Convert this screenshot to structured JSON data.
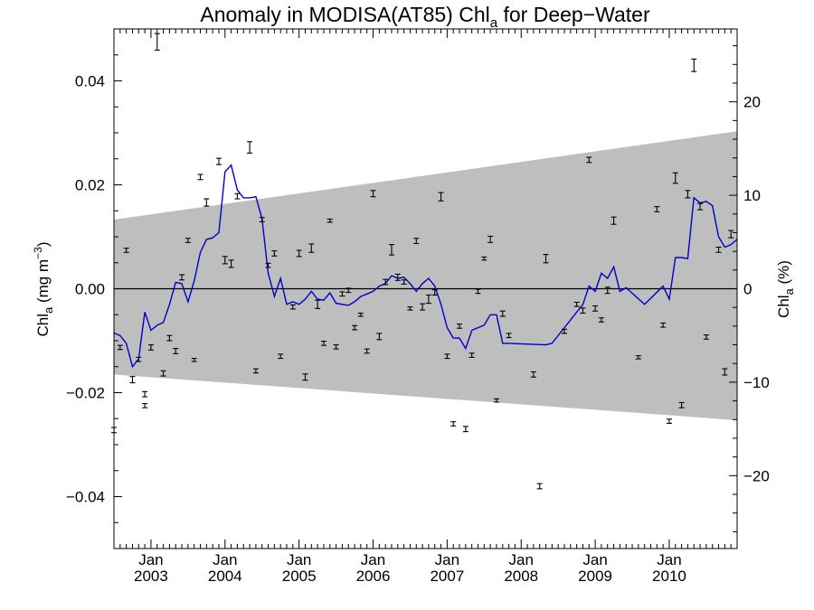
{
  "chart_data": {
    "type": "scatter",
    "title": {
      "main": "Anomaly in MODISA(AT85) Chl",
      "sub": "a",
      "rest": " for Deep−Water"
    },
    "ylabel_left": {
      "main": "Chl",
      "sub": "a",
      "rest": " (mg m",
      "sup": "−3",
      "end": ")"
    },
    "ylabel_right": {
      "main": "Chl",
      "sub": "a",
      "rest": " (%)"
    },
    "x_range": [
      "2002-07",
      "2010-12"
    ],
    "x_ticks": [
      {
        "month": "Jan",
        "year": "2003"
      },
      {
        "month": "Jan",
        "year": "2004"
      },
      {
        "month": "Jan",
        "year": "2005"
      },
      {
        "month": "Jan",
        "year": "2006"
      },
      {
        "month": "Jan",
        "year": "2007"
      },
      {
        "month": "Jan",
        "year": "2008"
      },
      {
        "month": "Jan",
        "year": "2009"
      },
      {
        "month": "Jan",
        "year": "2010"
      }
    ],
    "y_left": {
      "min": -0.05,
      "max": 0.05,
      "ticks": [
        "−0.04",
        "−0.02",
        "0.00",
        "0.02",
        "0.04"
      ],
      "tick_values": [
        -0.04,
        -0.02,
        0,
        0.02,
        0.04
      ]
    },
    "y_right": {
      "min": -27.8,
      "max": 27.8,
      "ticks": [
        "−20",
        "−10",
        "0",
        "10",
        "20"
      ],
      "tick_values": [
        -20,
        -10,
        0,
        10,
        20
      ]
    },
    "zero_line": true,
    "confidence_band": {
      "upper": [
        [
          "2002-07",
          0.0133
        ],
        [
          "2010-12",
          0.0303
        ]
      ],
      "lower": [
        [
          "2002-07",
          -0.0165
        ],
        [
          "2010-12",
          -0.0253
        ]
      ],
      "color": "#bebebe"
    },
    "smoothed_line": {
      "color": "#0000cc",
      "points": [
        [
          "2002-07",
          -0.0085
        ],
        [
          "2002-08",
          -0.009
        ],
        [
          "2002-09",
          -0.0105
        ],
        [
          "2002-10",
          -0.015
        ],
        [
          "2002-11",
          -0.0135
        ],
        [
          "2002-12",
          -0.0045
        ],
        [
          "2003-01",
          -0.008
        ],
        [
          "2003-02",
          -0.007
        ],
        [
          "2003-03",
          -0.0065
        ],
        [
          "2003-04",
          -0.003
        ],
        [
          "2003-05",
          0.0012
        ],
        [
          "2003-06",
          0.001
        ],
        [
          "2003-07",
          -0.0025
        ],
        [
          "2003-08",
          0.0015
        ],
        [
          "2003-09",
          0.007
        ],
        [
          "2003-10",
          0.0095
        ],
        [
          "2003-11",
          0.0098
        ],
        [
          "2003-12",
          0.0108
        ],
        [
          "2004-01",
          0.0225
        ],
        [
          "2004-02",
          0.0238
        ],
        [
          "2004-03",
          0.019
        ],
        [
          "2004-04",
          0.0175
        ],
        [
          "2004-05",
          0.0175
        ],
        [
          "2004-06",
          0.0177
        ],
        [
          "2004-07",
          0.0135
        ],
        [
          "2004-08",
          0.003
        ],
        [
          "2004-09",
          -0.0015
        ],
        [
          "2004-10",
          0.002
        ],
        [
          "2004-11",
          -0.003
        ],
        [
          "2004-12",
          -0.0025
        ],
        [
          "2005-01",
          -0.003
        ],
        [
          "2005-02",
          -0.002
        ],
        [
          "2005-03",
          -0.0005
        ],
        [
          "2005-04",
          -0.002
        ],
        [
          "2005-05",
          -0.0022
        ],
        [
          "2005-06",
          -0.0008
        ],
        [
          "2005-07",
          -0.0028
        ],
        [
          "2005-08",
          -0.003
        ],
        [
          "2005-09",
          -0.0032
        ],
        [
          "2005-10",
          -0.0025
        ],
        [
          "2005-11",
          -0.0015
        ],
        [
          "2005-12",
          -0.001
        ],
        [
          "2006-01",
          -0.0005
        ],
        [
          "2006-02",
          0.0005
        ],
        [
          "2006-03",
          0.001
        ],
        [
          "2006-04",
          0.0025
        ],
        [
          "2006-05",
          0.002
        ],
        [
          "2006-06",
          0.0022
        ],
        [
          "2006-07",
          0.001
        ],
        [
          "2006-08",
          -0.0005
        ],
        [
          "2006-09",
          0.001
        ],
        [
          "2006-10",
          0.002
        ],
        [
          "2006-11",
          0.0005
        ],
        [
          "2006-12",
          -0.003
        ],
        [
          "2007-01",
          -0.0075
        ],
        [
          "2007-02",
          -0.0095
        ],
        [
          "2007-03",
          -0.0095
        ],
        [
          "2007-04",
          -0.0115
        ],
        [
          "2007-05",
          -0.008
        ],
        [
          "2007-06",
          -0.0075
        ],
        [
          "2007-07",
          -0.007
        ],
        [
          "2007-08",
          -0.005
        ],
        [
          "2007-09",
          -0.005
        ],
        [
          "2007-10",
          -0.0105
        ],
        [
          "2007-11",
          -0.0105
        ],
        [
          "2008-05",
          -0.0108
        ],
        [
          "2008-06",
          -0.0105
        ],
        [
          "2008-11",
          -0.003
        ],
        [
          "2008-12",
          0.0005
        ],
        [
          "2009-01",
          -0.0005
        ],
        [
          "2009-02",
          0.003
        ],
        [
          "2009-03",
          0.002
        ],
        [
          "2009-04",
          0.0042
        ],
        [
          "2009-05",
          -0.0005
        ],
        [
          "2009-06",
          0.0002
        ],
        [
          "2009-09",
          -0.003
        ],
        [
          "2009-12",
          0.0005
        ],
        [
          "2010-01",
          -0.002
        ],
        [
          "2010-02",
          0.006
        ],
        [
          "2010-03",
          0.006
        ],
        [
          "2010-04",
          0.0058
        ],
        [
          "2010-05",
          0.0175
        ],
        [
          "2010-06",
          0.0165
        ],
        [
          "2010-07",
          0.0168
        ],
        [
          "2010-08",
          0.016
        ],
        [
          "2010-09",
          0.01
        ],
        [
          "2010-10",
          0.008
        ],
        [
          "2010-11",
          0.0085
        ],
        [
          "2010-12",
          0.0095
        ]
      ]
    },
    "points": [
      {
        "x": "2002-07",
        "y": -0.0272,
        "err": 0.0005
      },
      {
        "x": "2002-08",
        "y": -0.0113,
        "err": 0.0004
      },
      {
        "x": "2002-09",
        "y": 0.0074,
        "err": 0.0004
      },
      {
        "x": "2002-10",
        "y": -0.0175,
        "err": 0.0006
      },
      {
        "x": "2002-11",
        "y": -0.0136,
        "err": 0.0004
      },
      {
        "x": "2002-12",
        "y": -0.0203,
        "err": 0.0005
      },
      {
        "x": "2002-12",
        "y": -0.0225,
        "err": 0.0004
      },
      {
        "x": "2003-01",
        "y": -0.0113,
        "err": 0.0005
      },
      {
        "x": "2003-02",
        "y": 0.0475,
        "err": 0.0016
      },
      {
        "x": "2003-03",
        "y": -0.0163,
        "err": 0.0005
      },
      {
        "x": "2003-04",
        "y": -0.0095,
        "err": 0.0005
      },
      {
        "x": "2003-05",
        "y": -0.012,
        "err": 0.0005
      },
      {
        "x": "2003-06",
        "y": 0.0022,
        "err": 0.0005
      },
      {
        "x": "2003-07",
        "y": 0.0093,
        "err": 0.0004
      },
      {
        "x": "2003-08",
        "y": -0.0137,
        "err": 0.0003
      },
      {
        "x": "2003-09",
        "y": 0.0215,
        "err": 0.0005
      },
      {
        "x": "2003-10",
        "y": 0.0166,
        "err": 0.0007
      },
      {
        "x": "2003-12",
        "y": 0.0245,
        "err": 0.0006
      },
      {
        "x": "2004-01",
        "y": 0.0055,
        "err": 0.0007
      },
      {
        "x": "2004-02",
        "y": 0.0048,
        "err": 0.0007
      },
      {
        "x": "2004-03",
        "y": 0.0178,
        "err": 0.0005
      },
      {
        "x": "2004-05",
        "y": 0.0272,
        "err": 0.0011
      },
      {
        "x": "2004-06",
        "y": -0.0158,
        "err": 0.0004
      },
      {
        "x": "2004-07",
        "y": 0.0133,
        "err": 0.0004
      },
      {
        "x": "2004-08",
        "y": 0.0045,
        "err": 0.0004
      },
      {
        "x": "2004-09",
        "y": 0.0068,
        "err": 0.0005
      },
      {
        "x": "2004-10",
        "y": -0.013,
        "err": 0.0004
      },
      {
        "x": "2004-12",
        "y": -0.0035,
        "err": 0.0004
      },
      {
        "x": "2005-01",
        "y": 0.0068,
        "err": 0.0006
      },
      {
        "x": "2005-02",
        "y": -0.017,
        "err": 0.0006
      },
      {
        "x": "2005-03",
        "y": 0.0078,
        "err": 0.0008
      },
      {
        "x": "2005-04",
        "y": -0.003,
        "err": 0.0008
      },
      {
        "x": "2005-05",
        "y": -0.0105,
        "err": 0.0004
      },
      {
        "x": "2005-06",
        "y": 0.0131,
        "err": 0.0003
      },
      {
        "x": "2005-07",
        "y": -0.0112,
        "err": 0.0004
      },
      {
        "x": "2005-08",
        "y": -0.001,
        "err": 0.0004
      },
      {
        "x": "2005-09",
        "y": -0.0003,
        "err": 0.0004
      },
      {
        "x": "2005-10",
        "y": -0.0075,
        "err": 0.0004
      },
      {
        "x": "2005-11",
        "y": -0.005,
        "err": 0.0003
      },
      {
        "x": "2005-12",
        "y": -0.012,
        "err": 0.0004
      },
      {
        "x": "2006-01",
        "y": 0.0183,
        "err": 0.0006
      },
      {
        "x": "2006-02",
        "y": -0.0092,
        "err": 0.0006
      },
      {
        "x": "2006-03",
        "y": 0.0013,
        "err": 0.0005
      },
      {
        "x": "2006-04",
        "y": 0.0075,
        "err": 0.001
      },
      {
        "x": "2006-05",
        "y": 0.0022,
        "err": 0.0006
      },
      {
        "x": "2006-06",
        "y": 0.0013,
        "err": 0.0004
      },
      {
        "x": "2006-07",
        "y": -0.0038,
        "err": 0.0003
      },
      {
        "x": "2006-08",
        "y": 0.0092,
        "err": 0.0005
      },
      {
        "x": "2006-09",
        "y": -0.0035,
        "err": 0.0006
      },
      {
        "x": "2006-10",
        "y": -0.002,
        "err": 0.0008
      },
      {
        "x": "2006-11",
        "y": -0.0007,
        "err": 0.0005
      },
      {
        "x": "2006-12",
        "y": 0.0177,
        "err": 0.0008
      },
      {
        "x": "2007-01",
        "y": -0.013,
        "err": 0.0004
      },
      {
        "x": "2007-02",
        "y": -0.026,
        "err": 0.0004
      },
      {
        "x": "2007-03",
        "y": -0.0072,
        "err": 0.0004
      },
      {
        "x": "2007-04",
        "y": -0.027,
        "err": 0.0005
      },
      {
        "x": "2007-05",
        "y": -0.0128,
        "err": 0.0004
      },
      {
        "x": "2007-06",
        "y": -0.0005,
        "err": 0.0004
      },
      {
        "x": "2007-07",
        "y": 0.0058,
        "err": 0.0003
      },
      {
        "x": "2007-08",
        "y": 0.0095,
        "err": 0.0006
      },
      {
        "x": "2007-09",
        "y": -0.0215,
        "err": 0.0003
      },
      {
        "x": "2007-10",
        "y": -0.0048,
        "err": 0.0005
      },
      {
        "x": "2007-11",
        "y": -0.009,
        "err": 0.0004
      },
      {
        "x": "2008-03",
        "y": -0.0165,
        "err": 0.0005
      },
      {
        "x": "2008-04",
        "y": -0.038,
        "err": 0.0005
      },
      {
        "x": "2008-05",
        "y": 0.0058,
        "err": 0.0008
      },
      {
        "x": "2008-08",
        "y": -0.0082,
        "err": 0.0004
      },
      {
        "x": "2008-10",
        "y": -0.003,
        "err": 0.0004
      },
      {
        "x": "2008-11",
        "y": -0.0042,
        "err": 0.0005
      },
      {
        "x": "2008-12",
        "y": 0.0248,
        "err": 0.0005
      },
      {
        "x": "2009-01",
        "y": -0.0038,
        "err": 0.0005
      },
      {
        "x": "2009-02",
        "y": -0.006,
        "err": 0.0004
      },
      {
        "x": "2009-03",
        "y": -0.0003,
        "err": 0.0006
      },
      {
        "x": "2009-04",
        "y": 0.0131,
        "err": 0.0007
      },
      {
        "x": "2009-08",
        "y": -0.0132,
        "err": 0.0003
      },
      {
        "x": "2009-11",
        "y": 0.0153,
        "err": 0.0005
      },
      {
        "x": "2009-12",
        "y": -0.007,
        "err": 0.0004
      },
      {
        "x": "2010-01",
        "y": -0.0255,
        "err": 0.0004
      },
      {
        "x": "2010-02",
        "y": 0.0213,
        "err": 0.001
      },
      {
        "x": "2010-03",
        "y": -0.0224,
        "err": 0.0005
      },
      {
        "x": "2010-04",
        "y": 0.0182,
        "err": 0.0007
      },
      {
        "x": "2010-05",
        "y": 0.043,
        "err": 0.0012
      },
      {
        "x": "2010-06",
        "y": 0.0158,
        "err": 0.0006
      },
      {
        "x": "2010-07",
        "y": -0.0093,
        "err": 0.0004
      },
      {
        "x": "2010-09",
        "y": 0.0075,
        "err": 0.0005
      },
      {
        "x": "2010-10",
        "y": -0.016,
        "err": 0.0006
      },
      {
        "x": "2010-11",
        "y": 0.0105,
        "err": 0.0007
      }
    ]
  }
}
